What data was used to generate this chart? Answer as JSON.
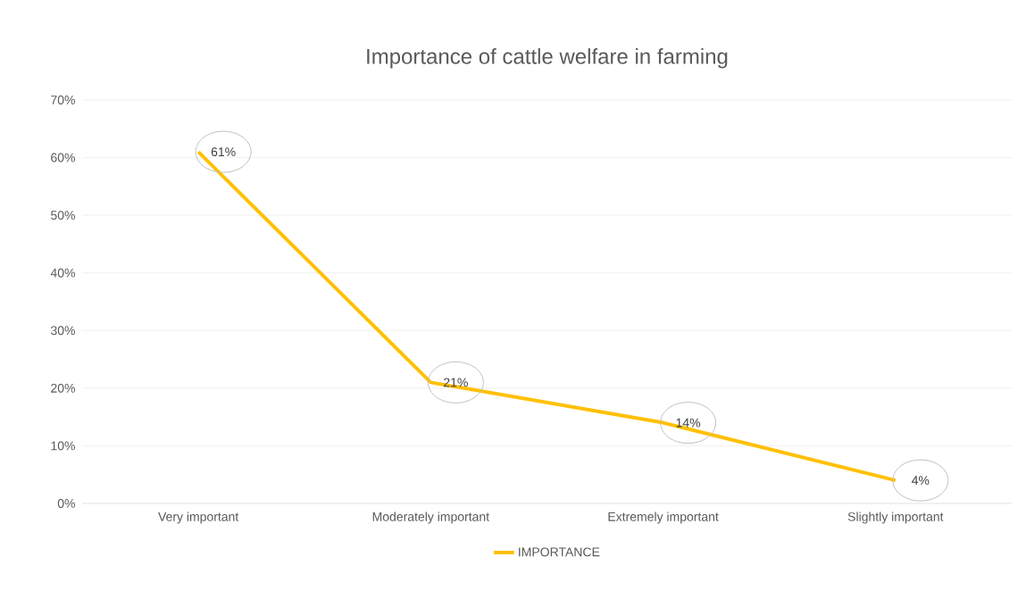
{
  "chart_data": {
    "type": "line",
    "title": "Importance of cattle welfare  in farming",
    "categories": [
      "Very important",
      "Moderately important",
      "Extremely important",
      "Slightly important"
    ],
    "series": [
      {
        "name": "IMPORTANCE",
        "color": "#ffc000",
        "values": [
          61,
          21,
          14,
          4
        ],
        "value_labels": [
          "61%",
          "21%",
          "14%",
          "4%"
        ]
      }
    ],
    "ylim": [
      0,
      70
    ],
    "yticks": [
      {
        "value": 0,
        "label": "0%"
      },
      {
        "value": 10,
        "label": "10%"
      },
      {
        "value": 20,
        "label": "20%"
      },
      {
        "value": 30,
        "label": "30%"
      },
      {
        "value": 40,
        "label": "40%"
      },
      {
        "value": 50,
        "label": "50%"
      },
      {
        "value": 60,
        "label": "60%"
      },
      {
        "value": 70,
        "label": "70%"
      }
    ],
    "grid": "y",
    "legend": "bottom",
    "marker": "none",
    "line_style": "solid"
  }
}
